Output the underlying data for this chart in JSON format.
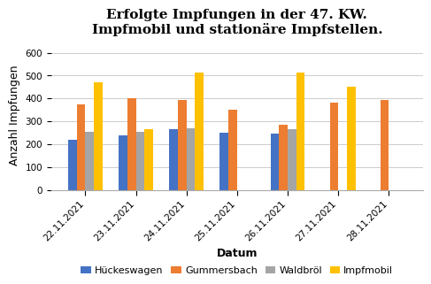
{
  "title": "Erfolgte Impfungen in der 47. KW.\nImpfmobil und stationäre Impfstellen.",
  "xlabel": "Datum",
  "ylabel": "Anzahl Impfungen",
  "categories": [
    "22.11.2021",
    "23.11.2021",
    "24.11.2021",
    "25.11.2021",
    "26.11.2021",
    "27.11.2021",
    "28.11.2021"
  ],
  "series": {
    "Hückeswagen": [
      220,
      240,
      265,
      250,
      245,
      0,
      0
    ],
    "Gummersbach": [
      375,
      400,
      395,
      350,
      285,
      380,
      395
    ],
    "Waldbröl": [
      255,
      255,
      270,
      0,
      265,
      0,
      0
    ],
    "Impfmobil": [
      470,
      265,
      515,
      0,
      515,
      450,
      0
    ]
  },
  "colors": {
    "Hückeswagen": "#4472C4",
    "Gummersbach": "#ED7D31",
    "Waldbröl": "#A5A5A5",
    "Impfmobil": "#FFC000"
  },
  "ylim": [
    0,
    650
  ],
  "yticks": [
    0,
    100,
    200,
    300,
    400,
    500,
    600
  ],
  "background_color": "#ffffff",
  "title_fontsize": 11,
  "axis_label_fontsize": 9,
  "tick_fontsize": 7.5,
  "legend_fontsize": 8
}
